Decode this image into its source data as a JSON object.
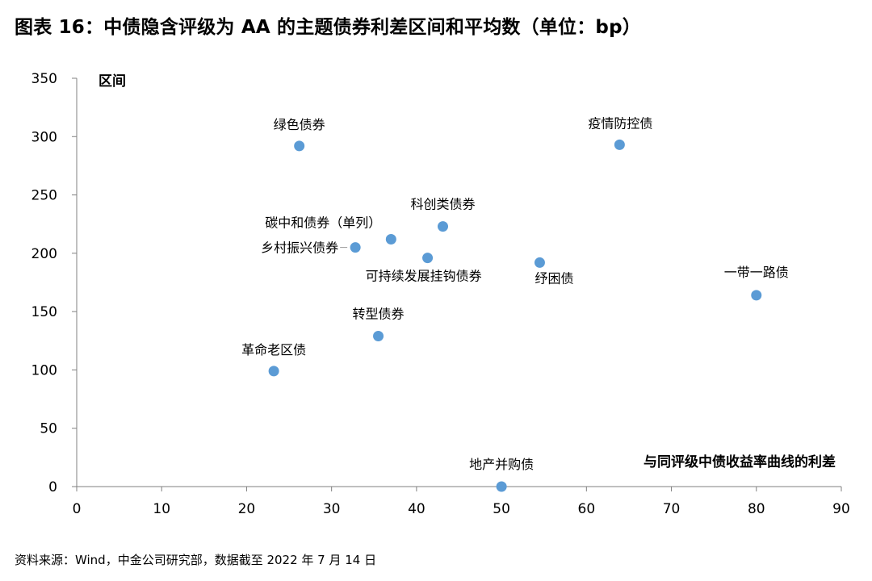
{
  "title": "图表 16：中债隐含评级为 AA 的主题债券利差区间和平均数（单位：bp）",
  "source": "资料来源：Wind，中金公司研究部，数据截至 2022 年 7 月 14 日",
  "chart_data": {
    "type": "scatter",
    "title": "图表 16：中债隐含评级为 AA 的主题债券利差区间和平均数（单位：bp）",
    "xlabel": "与同评级中债收益率曲线的利差",
    "ylabel": "区间",
    "xlim": [
      0,
      90
    ],
    "ylim": [
      0,
      350
    ],
    "xticks": [
      0,
      10,
      20,
      30,
      40,
      50,
      60,
      70,
      80,
      90
    ],
    "yticks": [
      0,
      50,
      100,
      150,
      200,
      250,
      300,
      350
    ],
    "grid": false,
    "legend": "none",
    "marker_color": "#5b9bd5",
    "points": [
      {
        "name": "绿色债券",
        "x": 26.2,
        "y": 292
      },
      {
        "name": "疫情防控债",
        "x": 63.9,
        "y": 293
      },
      {
        "name": "科创类债券",
        "x": 43.1,
        "y": 223
      },
      {
        "name": "碳中和债券（单列）",
        "x": 37.0,
        "y": 212
      },
      {
        "name": "乡村振兴债券",
        "x": 32.8,
        "y": 205
      },
      {
        "name": "可持续发展挂钩债券",
        "x": 41.3,
        "y": 196
      },
      {
        "name": "纾困债",
        "x": 54.5,
        "y": 192
      },
      {
        "name": "一带一路债",
        "x": 80.0,
        "y": 164
      },
      {
        "name": "转型债券",
        "x": 35.5,
        "y": 129
      },
      {
        "name": "革命老区债",
        "x": 23.2,
        "y": 99
      },
      {
        "name": "地产并购债",
        "x": 50.0,
        "y": 0
      }
    ]
  }
}
